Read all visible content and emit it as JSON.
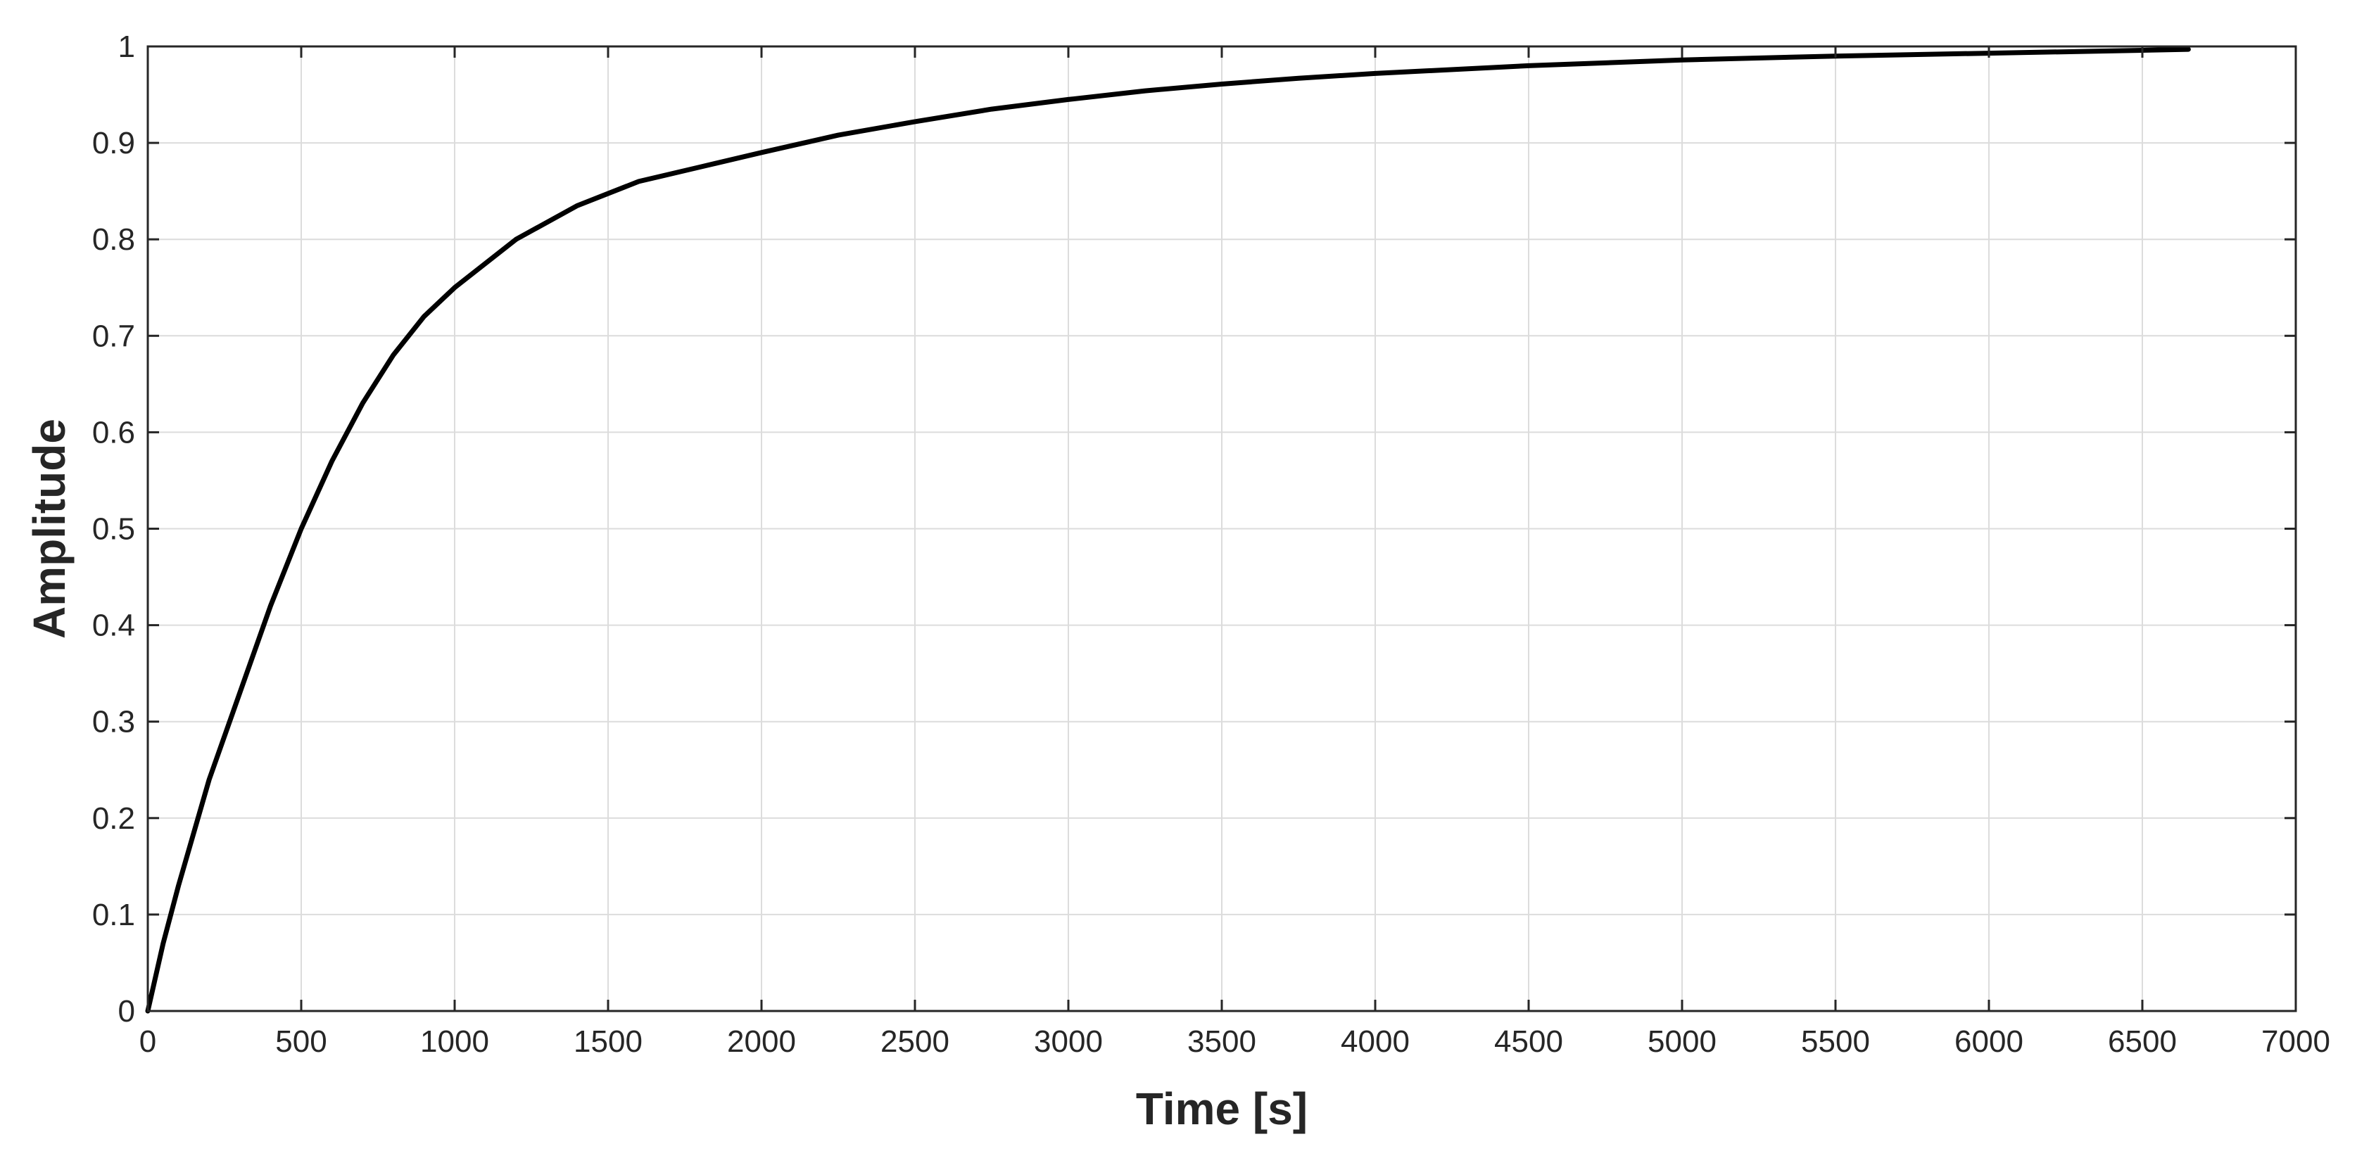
{
  "chart_data": {
    "type": "line",
    "title": "",
    "xlabel": "Time [s]",
    "ylabel": "Amplitude",
    "xlim": [
      0,
      7000
    ],
    "ylim": [
      0,
      1
    ],
    "grid": true,
    "x_ticks": [
      0,
      500,
      1000,
      1500,
      2000,
      2500,
      3000,
      3500,
      4000,
      4500,
      5000,
      5500,
      6000,
      6500,
      7000
    ],
    "x_tick_labels": [
      "0",
      "500",
      "1000",
      "1500",
      "2000",
      "2500",
      "3000",
      "3500",
      "4000",
      "4500",
      "5000",
      "5500",
      "6000",
      "6500",
      "7000"
    ],
    "y_ticks": [
      0,
      0.1,
      0.2,
      0.3,
      0.4,
      0.5,
      0.6,
      0.7,
      0.8,
      0.9,
      1
    ],
    "y_tick_labels": [
      "0",
      "0.1",
      "0.2",
      "0.3",
      "0.4",
      "0.5",
      "0.6",
      "0.7",
      "0.8",
      "0.9",
      "1"
    ],
    "series": [
      {
        "color": "#000000",
        "x": [
          0,
          50,
          100,
          200,
          300,
          400,
          500,
          600,
          700,
          800,
          900,
          1000,
          1200,
          1400,
          1600,
          1800,
          2000,
          2250,
          2500,
          2750,
          3000,
          3250,
          3500,
          3750,
          4000,
          4500,
          5000,
          5500,
          6000,
          6500,
          6650
        ],
        "y": [
          0,
          0.07,
          0.13,
          0.24,
          0.33,
          0.42,
          0.5,
          0.57,
          0.63,
          0.68,
          0.72,
          0.75,
          0.8,
          0.835,
          0.86,
          0.875,
          0.89,
          0.908,
          0.922,
          0.935,
          0.945,
          0.954,
          0.961,
          0.967,
          0.972,
          0.98,
          0.986,
          0.99,
          0.993,
          0.996,
          0.997
        ]
      }
    ]
  }
}
